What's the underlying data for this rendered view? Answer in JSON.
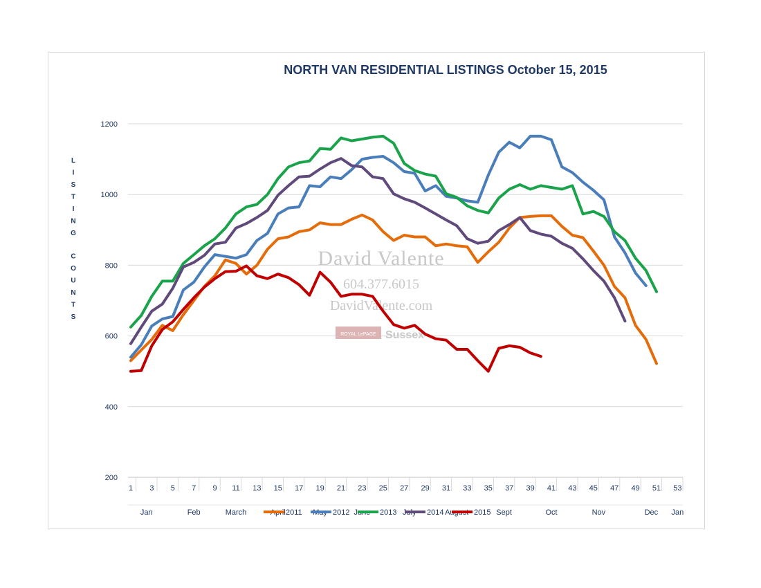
{
  "chart_data": {
    "type": "line",
    "title": "NORTH VAN RESIDENTIAL LISTINGS October 15, 2015",
    "ylabel": "LISTING COUNTS",
    "xlabel": "",
    "ylim": [
      200,
      1200
    ],
    "yticks": [
      200,
      400,
      600,
      800,
      1000,
      1200
    ],
    "xlim": [
      1,
      53
    ],
    "xticks": [
      1,
      3,
      5,
      7,
      9,
      11,
      13,
      15,
      17,
      19,
      21,
      23,
      25,
      27,
      29,
      31,
      33,
      35,
      37,
      39,
      41,
      43,
      45,
      47,
      49,
      51,
      53
    ],
    "months": [
      {
        "label": "Jan",
        "week": 2.5
      },
      {
        "label": "Feb",
        "week": 7
      },
      {
        "label": "March",
        "week": 11
      },
      {
        "label": "April",
        "week": 15
      },
      {
        "label": "May",
        "week": 19
      },
      {
        "label": "June",
        "week": 23
      },
      {
        "label": "July",
        "week": 27.5
      },
      {
        "label": "August",
        "week": 32
      },
      {
        "label": "Sept",
        "week": 36.5
      },
      {
        "label": "Oct",
        "week": 41
      },
      {
        "label": "Nov",
        "week": 45.5
      },
      {
        "label": "Dec",
        "week": 50.5
      },
      {
        "label": "Jan",
        "week": 53
      }
    ],
    "grid": true,
    "legend_position": "bottom",
    "series": [
      {
        "name": "2011",
        "color": "#e46c0a",
        "start": 1,
        "values": [
          530,
          560,
          590,
          630,
          615,
          660,
          700,
          740,
          770,
          815,
          805,
          775,
          800,
          845,
          875,
          880,
          895,
          900,
          920,
          915,
          915,
          930,
          942,
          928,
          895,
          870,
          885,
          880,
          880,
          855,
          860,
          855,
          852,
          808,
          838,
          865,
          905,
          935,
          938,
          940,
          940,
          910,
          885,
          878,
          840,
          800,
          740,
          708,
          630,
          590,
          522
        ]
      },
      {
        "name": "2012",
        "color": "#4a7ebb",
        "start": 1,
        "values": [
          540,
          575,
          628,
          648,
          655,
          730,
          752,
          795,
          830,
          825,
          820,
          830,
          870,
          890,
          945,
          962,
          965,
          1025,
          1022,
          1050,
          1045,
          1070,
          1100,
          1105,
          1108,
          1090,
          1065,
          1060,
          1010,
          1025,
          995,
          990,
          982,
          978,
          1055,
          1120,
          1148,
          1132,
          1165,
          1165,
          1155,
          1078,
          1062,
          1035,
          1012,
          985,
          880,
          835,
          778,
          742
        ]
      },
      {
        "name": "2013",
        "color": "#1aa34a",
        "start": 1,
        "values": [
          625,
          658,
          712,
          755,
          755,
          805,
          830,
          855,
          875,
          905,
          945,
          965,
          972,
          1000,
          1045,
          1078,
          1090,
          1095,
          1130,
          1128,
          1160,
          1152,
          1157,
          1162,
          1165,
          1145,
          1088,
          1068,
          1058,
          1052,
          1002,
          992,
          968,
          955,
          948,
          990,
          1015,
          1028,
          1015,
          1025,
          1020,
          1015,
          1025,
          945,
          952,
          938,
          895,
          870,
          820,
          785,
          725
        ]
      },
      {
        "name": "2014",
        "color": "#604a7b",
        "start": 1,
        "values": [
          578,
          625,
          670,
          690,
          735,
          795,
          808,
          828,
          860,
          865,
          905,
          918,
          935,
          955,
          998,
          1025,
          1050,
          1052,
          1072,
          1090,
          1102,
          1082,
          1078,
          1050,
          1045,
          1002,
          988,
          978,
          962,
          945,
          928,
          912,
          875,
          862,
          868,
          898,
          915,
          935,
          898,
          888,
          882,
          862,
          848,
          818,
          785,
          755,
          708,
          642
        ]
      },
      {
        "name": "2015",
        "color": "#c00000",
        "start": 1,
        "values": [
          500,
          502,
          572,
          618,
          640,
          675,
          708,
          738,
          762,
          782,
          783,
          798,
          770,
          762,
          775,
          765,
          745,
          715,
          780,
          752,
          712,
          718,
          718,
          712,
          670,
          632,
          622,
          630,
          605,
          592,
          588,
          562,
          562,
          530,
          500,
          565,
          572,
          568,
          552,
          542
        ]
      }
    ]
  },
  "watermark": {
    "name": "David Valente",
    "phone": "604.377.6015",
    "website": "DavidValente.com",
    "brokerage_badge": "ROYAL LePAGE",
    "brokerage_name": "Sussex"
  }
}
